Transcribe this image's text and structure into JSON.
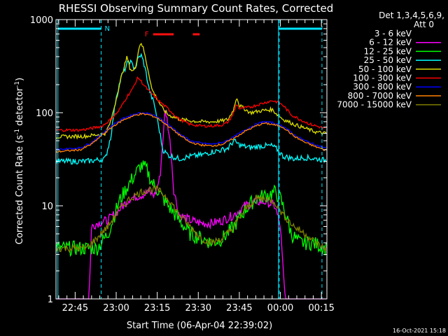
{
  "chart_data": {
    "type": "line",
    "title": "RHESSI Observing Summary Count Rates, Corrected",
    "xlabel": "Start Time (06-Apr-04 22:39:02)",
    "ylabel": "Corrected Count Rate (s",
    "ylabel_sup1": "-1",
    "ylabel_mid": " detector",
    "ylabel_sup2": "-1",
    "ylabel_end": ")",
    "yscale": "log",
    "ylim": [
      1,
      1000
    ],
    "xlim_minutes": [
      -1,
      98
    ],
    "x_tick_labels": [
      {
        "m": 6,
        "label": "22:45"
      },
      {
        "m": 21,
        "label": "23:00"
      },
      {
        "m": 36,
        "label": "23:15"
      },
      {
        "m": 51,
        "label": "23:30"
      },
      {
        "m": 66,
        "label": "23:45"
      },
      {
        "m": 81,
        "label": "00:00"
      },
      {
        "m": 96,
        "label": "00:15"
      }
    ],
    "y_tick_labels": [
      {
        "v": 1,
        "label": "1"
      },
      {
        "v": 10,
        "label": "10"
      },
      {
        "v": 100,
        "label": "100"
      },
      {
        "v": 1000,
        "label": "1000"
      }
    ],
    "legend_header": [
      "Det 1,3,4,5,6,9,",
      "Att 0"
    ],
    "footer_date": "16-Oct-2021 15:18",
    "annotations": {
      "night_label": "N",
      "flare_label": "F"
    },
    "night_bars": [
      [
        -0.3,
        15.5
      ],
      [
        80.3,
        96.2
      ]
    ],
    "flare_bars": [
      [
        34.5,
        42.0
      ],
      [
        49.0,
        51.5
      ]
    ],
    "vlines_dashed": [
      15.5,
      80.6,
      96.2
    ],
    "vlines_solid": [
      -0.3,
      80.3
    ],
    "series": [
      {
        "name": "3 - 6 keV",
        "color": "#000000",
        "points": [
          [
            -1,
            0.9
          ],
          [
            13,
            0.9
          ],
          [
            14,
            2
          ],
          [
            15,
            1.3
          ],
          [
            16,
            0.9
          ],
          [
            18,
            6
          ],
          [
            22,
            10
          ],
          [
            26,
            12
          ],
          [
            30,
            14
          ],
          [
            36,
            15
          ],
          [
            38,
            18
          ],
          [
            39,
            30
          ],
          [
            40,
            60
          ],
          [
            41,
            45
          ],
          [
            42,
            30
          ],
          [
            44,
            12
          ],
          [
            46,
            7
          ],
          [
            50,
            5
          ],
          [
            54,
            3
          ],
          [
            56,
            2
          ],
          [
            60,
            2
          ],
          [
            63,
            2.5
          ],
          [
            66,
            7
          ],
          [
            70,
            10
          ],
          [
            74,
            12
          ],
          [
            77,
            12
          ],
          [
            79,
            6
          ],
          [
            80,
            3
          ],
          [
            82,
            3
          ],
          [
            85,
            3
          ],
          [
            88,
            3
          ],
          [
            90,
            0.8
          ],
          [
            98,
            0.8
          ]
        ]
      },
      {
        "name": "6 - 12 keV",
        "color": "#ff00ff",
        "points": [
          [
            -1,
            0.9
          ],
          [
            11,
            0.9
          ],
          [
            12,
            6
          ],
          [
            14,
            6.5
          ],
          [
            18,
            7
          ],
          [
            22,
            9
          ],
          [
            26,
            12
          ],
          [
            30,
            13
          ],
          [
            33,
            14
          ],
          [
            35,
            13
          ],
          [
            37,
            20
          ],
          [
            38,
            50
          ],
          [
            39,
            110
          ],
          [
            40,
            70
          ],
          [
            41,
            40
          ],
          [
            42,
            15
          ],
          [
            44,
            8
          ],
          [
            48,
            7
          ],
          [
            52,
            6.5
          ],
          [
            56,
            6.5
          ],
          [
            60,
            7
          ],
          [
            64,
            8
          ],
          [
            68,
            10
          ],
          [
            72,
            11
          ],
          [
            76,
            11
          ],
          [
            79,
            10
          ],
          [
            81,
            6
          ],
          [
            82,
            2
          ],
          [
            83,
            0.8
          ],
          [
            98,
            0.8
          ]
        ]
      },
      {
        "name": "12 - 25 keV",
        "color": "#00ff00",
        "points": [
          [
            -1,
            3.5
          ],
          [
            10,
            3.5
          ],
          [
            14,
            3.5
          ],
          [
            18,
            5
          ],
          [
            22,
            11
          ],
          [
            25,
            16
          ],
          [
            28,
            22
          ],
          [
            30,
            27
          ],
          [
            32,
            25
          ],
          [
            34,
            18
          ],
          [
            36,
            15
          ],
          [
            38,
            12
          ],
          [
            40,
            10
          ],
          [
            44,
            7
          ],
          [
            48,
            5
          ],
          [
            52,
            4.5
          ],
          [
            56,
            4
          ],
          [
            60,
            4.5
          ],
          [
            64,
            6
          ],
          [
            68,
            9
          ],
          [
            72,
            12
          ],
          [
            76,
            13
          ],
          [
            79,
            14
          ],
          [
            81,
            12
          ],
          [
            83,
            8
          ],
          [
            85,
            5
          ],
          [
            88,
            4
          ],
          [
            92,
            4
          ],
          [
            95,
            3.8
          ],
          [
            97,
            3.5
          ]
        ]
      },
      {
        "name": "25 - 50 keV",
        "color": "#00ffff",
        "points": [
          [
            -1,
            30
          ],
          [
            10,
            30
          ],
          [
            14,
            31
          ],
          [
            17,
            32
          ],
          [
            19,
            55
          ],
          [
            21,
            150
          ],
          [
            23,
            250
          ],
          [
            25,
            330
          ],
          [
            26,
            360
          ],
          [
            27,
            320
          ],
          [
            28,
            300
          ],
          [
            29,
            380
          ],
          [
            30,
            420
          ],
          [
            31,
            350
          ],
          [
            32,
            260
          ],
          [
            33,
            180
          ],
          [
            35,
            120
          ],
          [
            37,
            60
          ],
          [
            38,
            40
          ],
          [
            40,
            35
          ],
          [
            44,
            32
          ],
          [
            48,
            34
          ],
          [
            52,
            35
          ],
          [
            56,
            38
          ],
          [
            60,
            40
          ],
          [
            62,
            42
          ],
          [
            64,
            50
          ],
          [
            66,
            45
          ],
          [
            70,
            42
          ],
          [
            74,
            44
          ],
          [
            78,
            44
          ],
          [
            80,
            40
          ],
          [
            82,
            34
          ],
          [
            86,
            32
          ],
          [
            90,
            33
          ],
          [
            94,
            32
          ],
          [
            97,
            31
          ]
        ]
      },
      {
        "name": "50 - 100 keV",
        "color": "#dddd00",
        "points": [
          [
            -1,
            55
          ],
          [
            10,
            56
          ],
          [
            14,
            58
          ],
          [
            17,
            60
          ],
          [
            19,
            80
          ],
          [
            21,
            140
          ],
          [
            23,
            250
          ],
          [
            25,
            400
          ],
          [
            26,
            300
          ],
          [
            27,
            280
          ],
          [
            28,
            300
          ],
          [
            29,
            450
          ],
          [
            30,
            580
          ],
          [
            31,
            480
          ],
          [
            32,
            350
          ],
          [
            33,
            260
          ],
          [
            34,
            180
          ],
          [
            36,
            140
          ],
          [
            38,
            110
          ],
          [
            40,
            95
          ],
          [
            42,
            90
          ],
          [
            44,
            85
          ],
          [
            48,
            82
          ],
          [
            52,
            80
          ],
          [
            56,
            80
          ],
          [
            60,
            82
          ],
          [
            62,
            85
          ],
          [
            64,
            110
          ],
          [
            65,
            150
          ],
          [
            66,
            120
          ],
          [
            70,
            100
          ],
          [
            74,
            105
          ],
          [
            78,
            108
          ],
          [
            80,
            95
          ],
          [
            82,
            85
          ],
          [
            86,
            75
          ],
          [
            90,
            68
          ],
          [
            94,
            62
          ],
          [
            97,
            60
          ]
        ]
      },
      {
        "name": "100 - 300 keV",
        "color": "#ff0000",
        "points": [
          [
            -1,
            65
          ],
          [
            8,
            65
          ],
          [
            12,
            68
          ],
          [
            16,
            72
          ],
          [
            19,
            85
          ],
          [
            22,
            105
          ],
          [
            25,
            150
          ],
          [
            27,
            180
          ],
          [
            28,
            210
          ],
          [
            29,
            240
          ],
          [
            30,
            220
          ],
          [
            31,
            200
          ],
          [
            33,
            170
          ],
          [
            35,
            150
          ],
          [
            37,
            130
          ],
          [
            40,
            110
          ],
          [
            44,
            85
          ],
          [
            48,
            75
          ],
          [
            52,
            72
          ],
          [
            56,
            72
          ],
          [
            60,
            74
          ],
          [
            62,
            80
          ],
          [
            64,
            100
          ],
          [
            65,
            125
          ],
          [
            66,
            110
          ],
          [
            70,
            115
          ],
          [
            74,
            125
          ],
          [
            78,
            135
          ],
          [
            80,
            130
          ],
          [
            82,
            120
          ],
          [
            85,
            95
          ],
          [
            88,
            85
          ],
          [
            92,
            75
          ],
          [
            97,
            68
          ]
        ]
      },
      {
        "name": "300 - 800 keV",
        "color": "#0000ff",
        "points": [
          [
            -1,
            40
          ],
          [
            8,
            42
          ],
          [
            12,
            48
          ],
          [
            16,
            60
          ],
          [
            20,
            75
          ],
          [
            24,
            88
          ],
          [
            28,
            97
          ],
          [
            30,
            100
          ],
          [
            33,
            98
          ],
          [
            36,
            90
          ],
          [
            40,
            75
          ],
          [
            44,
            60
          ],
          [
            48,
            50
          ],
          [
            52,
            47
          ],
          [
            56,
            46
          ],
          [
            60,
            48
          ],
          [
            64,
            55
          ],
          [
            68,
            65
          ],
          [
            72,
            75
          ],
          [
            75,
            80
          ],
          [
            78,
            78
          ],
          [
            82,
            72
          ],
          [
            86,
            58
          ],
          [
            90,
            50
          ],
          [
            94,
            45
          ],
          [
            97,
            42
          ]
        ]
      },
      {
        "name": "800 - 7000 keV",
        "color": "#ff8000",
        "points": [
          [
            -1,
            38
          ],
          [
            8,
            40
          ],
          [
            12,
            46
          ],
          [
            16,
            58
          ],
          [
            20,
            72
          ],
          [
            24,
            85
          ],
          [
            28,
            94
          ],
          [
            30,
            97
          ],
          [
            33,
            95
          ],
          [
            36,
            88
          ],
          [
            40,
            72
          ],
          [
            44,
            58
          ],
          [
            48,
            48
          ],
          [
            52,
            45
          ],
          [
            56,
            44
          ],
          [
            60,
            46
          ],
          [
            64,
            53
          ],
          [
            68,
            63
          ],
          [
            72,
            72
          ],
          [
            75,
            77
          ],
          [
            78,
            75
          ],
          [
            82,
            70
          ],
          [
            86,
            56
          ],
          [
            90,
            48
          ],
          [
            94,
            43
          ],
          [
            97,
            40
          ]
        ]
      },
      {
        "name": "7000 - 15000 keV",
        "color": "#808000",
        "points": [
          [
            -1,
            3.5
          ],
          [
            10,
            3.5
          ],
          [
            14,
            4.5
          ],
          [
            18,
            6
          ],
          [
            22,
            9
          ],
          [
            26,
            12
          ],
          [
            30,
            14
          ],
          [
            33,
            15
          ],
          [
            36,
            15
          ],
          [
            40,
            12
          ],
          [
            44,
            8
          ],
          [
            48,
            6
          ],
          [
            52,
            4.5
          ],
          [
            56,
            4
          ],
          [
            60,
            4.5
          ],
          [
            64,
            6
          ],
          [
            68,
            9
          ],
          [
            72,
            12
          ],
          [
            76,
            12
          ],
          [
            79,
            11
          ],
          [
            82,
            8
          ],
          [
            86,
            6
          ],
          [
            90,
            5
          ],
          [
            94,
            4
          ],
          [
            97,
            3.5
          ]
        ]
      }
    ]
  }
}
